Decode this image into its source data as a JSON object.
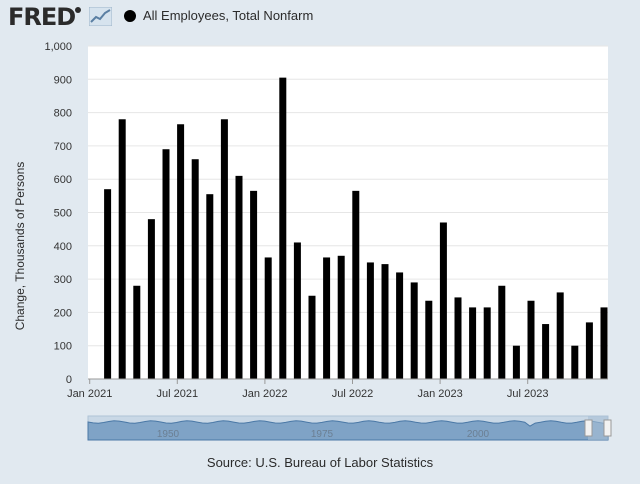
{
  "brand": {
    "name": "FRED"
  },
  "legend": {
    "series_label": "All Employees, Total Nonfarm",
    "marker_color": "#000000"
  },
  "source_text": "Source: U.S. Bureau of Labor Statistics",
  "navigator": {
    "year_labels": [
      "1950",
      "1975",
      "2000"
    ]
  },
  "chart_data": {
    "type": "bar",
    "ylabel": "Change, Thousands of Persons",
    "ylim": [
      0,
      1000
    ],
    "yticks": [
      0,
      100,
      200,
      300,
      400,
      500,
      600,
      700,
      800,
      900,
      1000
    ],
    "ytick_labels": [
      "0",
      "100",
      "200",
      "300",
      "400",
      "500",
      "600",
      "700",
      "800",
      "900",
      "1,000"
    ],
    "x_tick_labels": [
      "Jan 2021",
      "Jul 2021",
      "Jan 2022",
      "Jul 2022",
      "Jan 2023",
      "Jul 2023"
    ],
    "grid": true,
    "bar_color": "#000000",
    "series": [
      {
        "name": "All Employees, Total Nonfarm",
        "categories": [
          "2021-02",
          "2021-03",
          "2021-04",
          "2021-05",
          "2021-06",
          "2021-07",
          "2021-08",
          "2021-09",
          "2021-10",
          "2021-11",
          "2021-12",
          "2022-01",
          "2022-02",
          "2022-03",
          "2022-04",
          "2022-05",
          "2022-06",
          "2022-07",
          "2022-08",
          "2022-09",
          "2022-10",
          "2022-11",
          "2022-12",
          "2023-01",
          "2023-02",
          "2023-03",
          "2023-04",
          "2023-05",
          "2023-06",
          "2023-07",
          "2023-08",
          "2023-09",
          "2023-10",
          "2023-11",
          "2023-12"
        ],
        "values": [
          570,
          780,
          280,
          480,
          690,
          765,
          660,
          555,
          780,
          610,
          565,
          365,
          905,
          410,
          250,
          365,
          370,
          565,
          350,
          345,
          320,
          290,
          235,
          470,
          245,
          215,
          215,
          280,
          100,
          235,
          165,
          260,
          100,
          170,
          215
        ]
      }
    ]
  }
}
